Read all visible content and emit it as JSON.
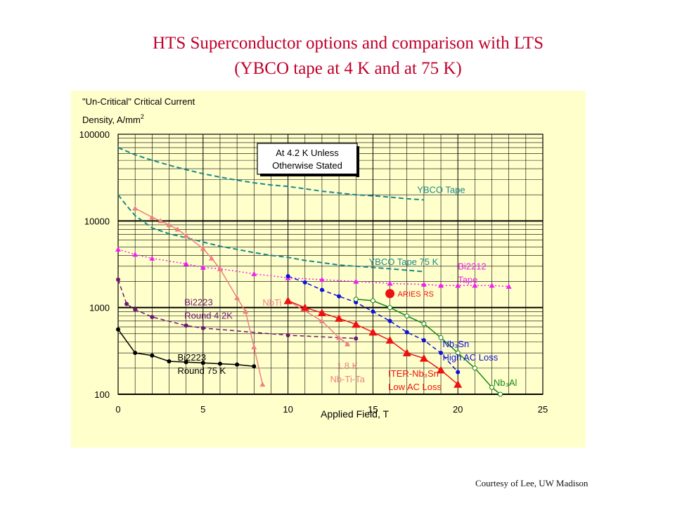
{
  "slide": {
    "title_line1": "HTS Superconductor options and comparison with LTS",
    "title_line2": "(YBCO tape at 4 K and at 75 K)",
    "credit": "Courtesy of Lee, UW Madison"
  },
  "chart_data": {
    "type": "scatter",
    "ylabel_line1": "\"Un-Critical\" Critical Current",
    "ylabel_line2": "Density, A/mm",
    "ylabel_sup": "2",
    "xlabel": "Applied Field, T",
    "xlim": [
      0,
      25
    ],
    "ylim": [
      100,
      100000
    ],
    "yscale": "log",
    "x_ticks": [
      "0",
      "5",
      "10",
      "15",
      "20",
      "25"
    ],
    "y_ticks": [
      "100",
      "1000",
      "10000",
      "100000"
    ],
    "x_tick_values": [
      0,
      5,
      10,
      15,
      20,
      25
    ],
    "y_tick_values": [
      100,
      1000,
      10000,
      100000
    ],
    "grid": true,
    "box_note_line1": "At 4.2 K Unless",
    "box_note_line2": "Otherwise Stated",
    "colors": {
      "background": "#ffffcc",
      "title": "#c0002a",
      "ybco": "#1a8a8a",
      "bi2212": "#ee22ee",
      "bi2223_42": "#701870",
      "bi2223_75": "#000000",
      "nbti": "#f08080",
      "nb3sn_high": "#1010dd",
      "nb3sn_iter": "#ee1111",
      "nb3al": "#118811",
      "aries": "#ee1111"
    },
    "series": [
      {
        "key": "ybco42",
        "name_lines": [
          "YBCO Tape"
        ],
        "style": "teal-dashed",
        "marker": "none",
        "x": [
          0,
          1,
          2,
          3,
          4,
          5,
          6,
          7,
          8,
          9,
          10,
          11,
          12,
          13,
          14,
          15,
          16,
          17,
          18
        ],
        "y": [
          70000,
          58000,
          50000,
          44000,
          39000,
          35000,
          32000,
          29500,
          27500,
          26000,
          25000,
          23500,
          22000,
          21000,
          20000,
          19500,
          18800,
          18000,
          17500
        ]
      },
      {
        "key": "ybco75",
        "name_lines": [
          "YBCO Tape 75 K"
        ],
        "style": "teal-dashed",
        "marker": "none",
        "x": [
          0,
          0.5,
          1,
          1.5,
          2,
          3,
          4,
          5,
          6,
          7,
          8,
          9,
          10,
          11,
          12,
          13,
          14,
          15,
          16,
          17,
          18
        ],
        "y": [
          20000,
          15000,
          11500,
          9800,
          8300,
          7100,
          6400,
          5700,
          5100,
          4700,
          4300,
          4000,
          3800,
          3500,
          3300,
          3100,
          3000,
          2900,
          2800,
          2700,
          2600
        ]
      },
      {
        "key": "bi2212",
        "name_lines": [
          "Bi2212",
          "Tape"
        ],
        "style": "magenta-dotted",
        "marker": "triangle",
        "x": [
          0,
          1,
          2,
          4,
          5,
          6,
          8,
          10,
          12,
          14,
          16,
          18,
          19,
          20,
          21,
          22,
          23
        ],
        "y": [
          4700,
          4100,
          3700,
          3200,
          2900,
          2800,
          2450,
          2200,
          2100,
          2000,
          1900,
          1850,
          1800,
          1800,
          1800,
          1800,
          1750
        ]
      },
      {
        "key": "bi2223_42",
        "name_lines": [
          "Bi2223",
          "Round 4.2K"
        ],
        "style": "purple-dashed",
        "marker": "circle",
        "x": [
          0,
          0.5,
          1,
          2,
          4,
          5,
          10,
          14
        ],
        "y": [
          2100,
          1100,
          950,
          780,
          620,
          580,
          480,
          440
        ]
      },
      {
        "key": "bi2223_75",
        "name_lines": [
          "Bi2223",
          "Round 75 K"
        ],
        "style": "black-solid",
        "marker": "circle",
        "x": [
          0,
          1,
          2,
          3,
          4,
          5,
          6,
          7,
          8
        ],
        "y": [
          560,
          300,
          280,
          240,
          235,
          230,
          225,
          220,
          210
        ]
      },
      {
        "key": "nbti",
        "name_lines": [
          "NbTi"
        ],
        "style": "salmon-solid",
        "marker": "triangle",
        "x": [
          1,
          2,
          2.5,
          3,
          3.5,
          4,
          5,
          5.5,
          6,
          7,
          7.5,
          8,
          8.5
        ],
        "y": [
          14000,
          11000,
          10000,
          9000,
          8000,
          6800,
          4800,
          3700,
          2800,
          1300,
          900,
          350,
          130
        ]
      },
      {
        "key": "nbtita",
        "name_lines": [
          "1.8 K",
          "Nb-Ti-Ta"
        ],
        "style": "salmon-solid",
        "marker": "triangle",
        "x": [
          10,
          12,
          13,
          13.5
        ],
        "y": [
          1200,
          700,
          450,
          380
        ]
      },
      {
        "key": "nb3sn_high",
        "name_lines": [
          "Nb₃Sn",
          "High AC Loss"
        ],
        "style": "blue-dashed",
        "marker": "circle",
        "x": [
          10,
          11,
          12,
          13,
          14,
          15,
          16,
          17,
          18,
          19,
          20
        ],
        "y": [
          2300,
          1950,
          1600,
          1350,
          1150,
          900,
          700,
          520,
          420,
          300,
          180
        ]
      },
      {
        "key": "nb3sn_iter",
        "name_lines": [
          "ITER-Nb₃Sn",
          "Low AC Loss"
        ],
        "style": "red-solid",
        "marker": "triangle",
        "x": [
          10,
          11,
          12,
          13,
          14,
          15,
          16,
          17,
          18,
          19,
          20
        ],
        "y": [
          1200,
          1000,
          870,
          750,
          640,
          520,
          420,
          300,
          260,
          190,
          130
        ]
      },
      {
        "key": "nb3al",
        "name_lines": [
          "Nb₃Al"
        ],
        "style": "green-solid",
        "marker": "open-circle",
        "x": [
          14,
          15,
          16,
          17,
          18,
          19,
          20,
          21,
          22,
          22.5
        ],
        "y": [
          1250,
          1200,
          1000,
          800,
          650,
          450,
          300,
          200,
          120,
          100
        ]
      }
    ],
    "points": [
      {
        "name": "ARIES RS",
        "x": 16,
        "y": 1450
      }
    ]
  }
}
